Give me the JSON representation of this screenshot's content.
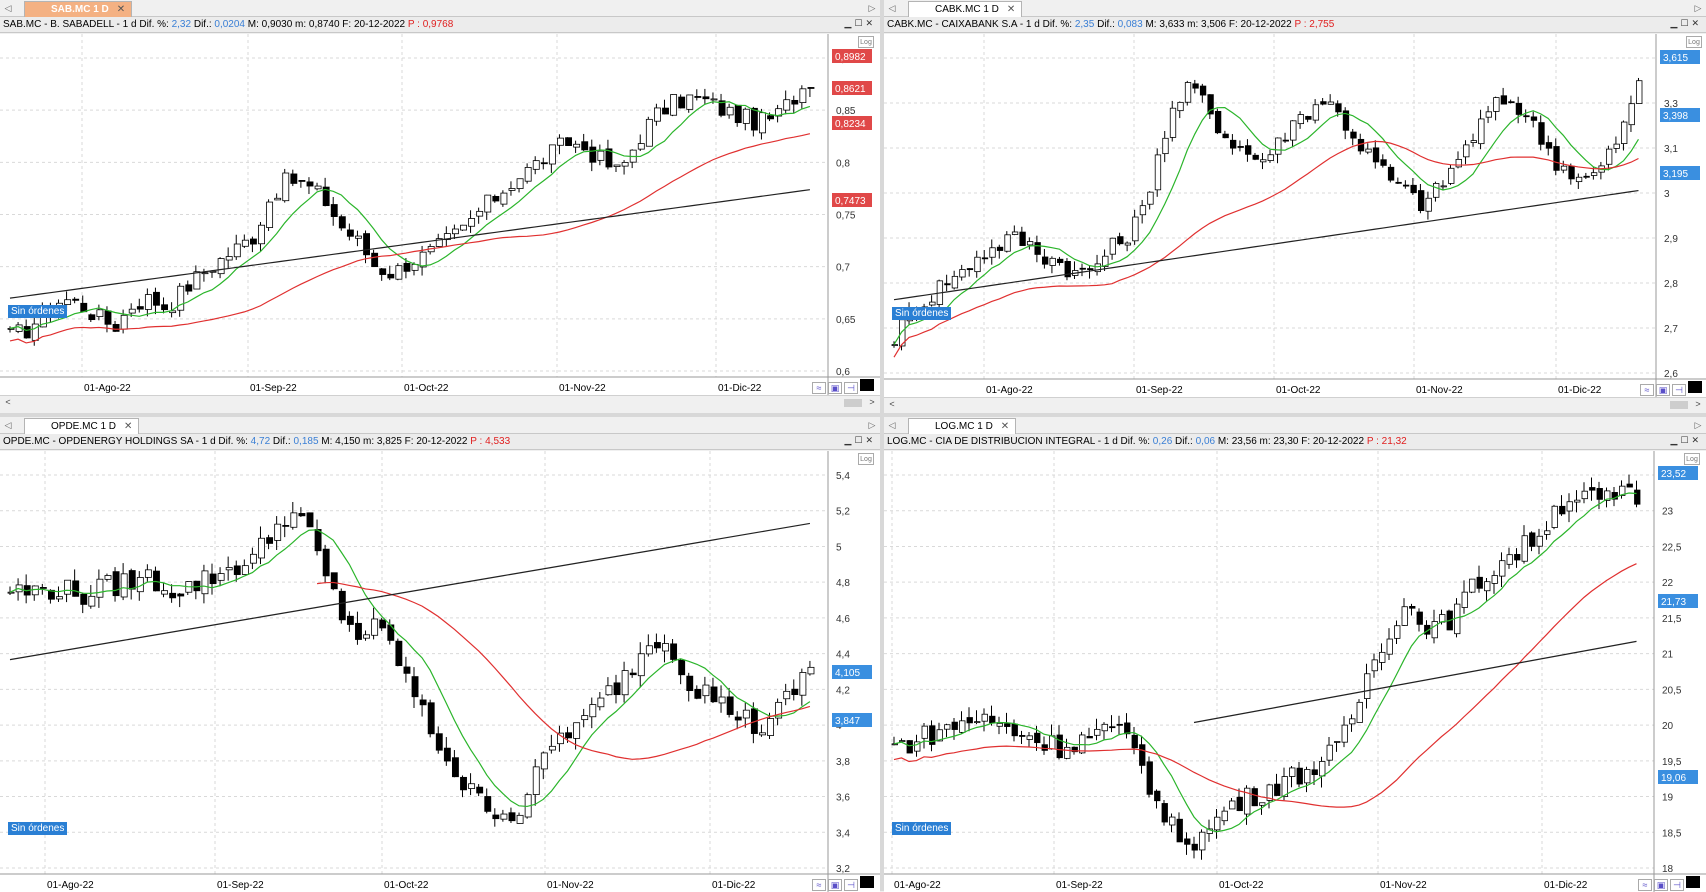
{
  "panes": [
    {
      "tab_label": "SAB.MC 1 D",
      "tab_active": true,
      "info": {
        "name": "SAB.MC - B. SABADELL - ",
        "period": "1 d",
        "dif_pct_label": " Dif. %: ",
        "dif_pct": "2,32",
        "dif_label": " Dif.: ",
        "dif": "0,0204",
        "rest": "  M: 0,9030  m: 0,8740  F: 20-12-2022 ",
        "price_label": " P : ",
        "price": "0,9768"
      },
      "badge": "Sin órdenes",
      "log_label": "Log",
      "x_labels": [
        "01-Ago-22",
        "01-Sep-22",
        "01-Oct-22",
        "01-Nov-22",
        "01-Dic-22"
      ],
      "y_labels": [
        "0,6",
        "0,65",
        "0,7",
        "0,75",
        "0,8",
        "0,85",
        "0,9"
      ],
      "price_tags": [
        {
          "text": "0,8982",
          "color": "#e04848"
        },
        {
          "text": "0,8621",
          "color": "#e04848"
        },
        {
          "text": "0,8234",
          "color": "#e04848"
        },
        {
          "text": "0,7473",
          "color": "#e04848"
        }
      ]
    },
    {
      "tab_label": "CABK.MC 1 D",
      "tab_active": false,
      "info": {
        "name": "CABK.MC - CAIXABANK S.A - ",
        "period": "1 d",
        "dif_pct_label": " Dif. %: ",
        "dif_pct": "2,35",
        "dif_label": " Dif.: ",
        "dif": "0,083",
        "rest": "  M: 3,633  m: 3,506  F: 20-12-2022 ",
        "price_label": " P : ",
        "price": "2,755"
      },
      "badge": "Sin órdenes",
      "log_label": "Log",
      "x_labels": [
        "01-Ago-22",
        "01-Sep-22",
        "01-Oct-22",
        "01-Nov-22",
        "01-Dic-22"
      ],
      "y_labels": [
        "2,6",
        "2,7",
        "2,8",
        "2,9",
        "3",
        "3,1",
        "3,3",
        "3,5"
      ],
      "price_tags": [
        {
          "text": "3,615",
          "color": "#3a8fe0"
        },
        {
          "text": "3,398",
          "color": "#3a8fe0"
        },
        {
          "text": "3,195",
          "color": "#3a8fe0"
        }
      ]
    },
    {
      "tab_label": "OPDE.MC 1 D",
      "tab_active": false,
      "info": {
        "name": "OPDE.MC - OPDENERGY HOLDINGS SA - ",
        "period": "1 d",
        "dif_pct_label": " Dif. %: ",
        "dif_pct": "4,72",
        "dif_label": " Dif.: ",
        "dif": "0,185",
        "rest": "  M: 4,150  m: 3,825  F: 20-12-2022 ",
        "price_label": " P : ",
        "price": "4,533"
      },
      "badge": "Sin órdenes",
      "log_label": "Log",
      "x_labels": [
        "01-Ago-22",
        "01-Sep-22",
        "01-Oct-22",
        "01-Nov-22",
        "01-Dic-22"
      ],
      "y_labels": [
        "3,2",
        "3,4",
        "3,6",
        "3,8",
        "4",
        "4,2",
        "4,4",
        "4,6",
        "4,8",
        "5",
        "5,2",
        "5,4"
      ],
      "price_tags": [
        {
          "text": "4,105",
          "color": "#3a8fe0"
        },
        {
          "text": "3,847",
          "color": "#3a8fe0"
        }
      ]
    },
    {
      "tab_label": "LOG.MC 1 D",
      "tab_active": false,
      "info": {
        "name": "LOG.MC - CIA DE DISTRIBUCION INTEGRAL - ",
        "period": "1 d",
        "dif_pct_label": " Dif. %: ",
        "dif_pct": "0,26",
        "dif_label": " Dif.: ",
        "dif": "0,06",
        "rest": "  M: 23,56  m: 23,30  F: 20-12-2022 ",
        "price_label": " P : ",
        "price": "21,32"
      },
      "badge": "Sin órdenes",
      "log_label": "Log",
      "x_labels": [
        "01-Ago-22",
        "01-Sep-22",
        "01-Oct-22",
        "01-Nov-22",
        "01-Dic-22"
      ],
      "y_labels": [
        "18",
        "18,5",
        "19",
        "19,5",
        "20",
        "20,5",
        "21",
        "21,5",
        "22",
        "22,5",
        "23",
        "24"
      ],
      "price_tags": [
        {
          "text": "23,52",
          "color": "#3a8fe0"
        },
        {
          "text": "21,73",
          "color": "#3a8fe0"
        },
        {
          "text": "19,06",
          "color": "#3a8fe0"
        }
      ]
    }
  ],
  "icons": {
    "minimize": "minimize-icon",
    "maximize": "maximize-icon",
    "close": "close-icon",
    "scroll_left": "arrow-left-icon",
    "scroll_right": "arrow-right-icon"
  },
  "colors": {
    "sma_fast": "#2bb52b",
    "sma_mid": "#e03030",
    "sma_slow": "#222222",
    "grid": "#d9d9d9",
    "badge": "#2a7fd4"
  }
}
